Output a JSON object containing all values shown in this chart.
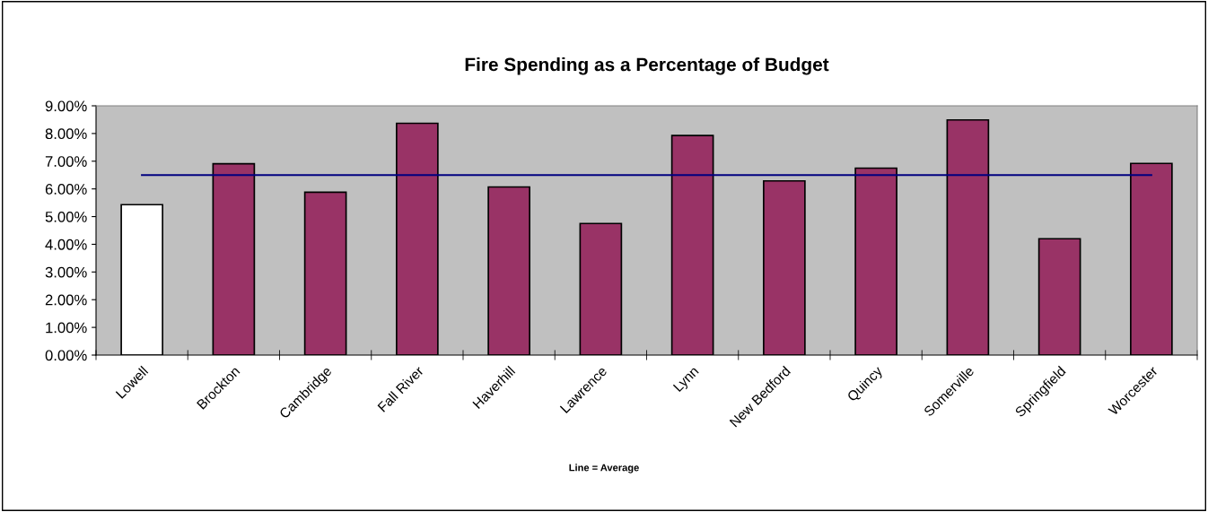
{
  "chart_data": {
    "type": "bar",
    "title": "Fire Spending as a Percentage of Budget",
    "annotations": [
      "Line = Average"
    ],
    "categories": [
      "Lowell",
      "Brockton",
      "Cambridge",
      "Fall River",
      "Haverhill",
      "Lawrence",
      "Lynn",
      "New Bedford",
      "Quincy",
      "Somerville",
      "Springfield",
      "Worcester"
    ],
    "series": [
      {
        "colors": [
          "#ffffff",
          "#993366",
          "#993366",
          "#993366",
          "#993366",
          "#993366",
          "#993366",
          "#993366",
          "#993366",
          "#993366",
          "#993366",
          "#993366"
        ],
        "values": [
          5.43,
          6.91,
          5.88,
          8.37,
          6.07,
          4.75,
          7.93,
          6.29,
          6.75,
          8.49,
          4.2,
          6.92
        ]
      },
      {
        "type": "line",
        "color": "#000080",
        "values": [
          6.5,
          6.5,
          6.5,
          6.5,
          6.5,
          6.5,
          6.5,
          6.5,
          6.5,
          6.5,
          6.5,
          6.5
        ]
      }
    ],
    "ylim": [
      0,
      9
    ],
    "yticks": [
      {
        "value": 0,
        "label": "0.00%"
      },
      {
        "value": 1,
        "label": "1.00%"
      },
      {
        "value": 2,
        "label": "2.00%"
      },
      {
        "value": 3,
        "label": "3.00%"
      },
      {
        "value": 4,
        "label": "4.00%"
      },
      {
        "value": 5,
        "label": "5.00%"
      },
      {
        "value": 6,
        "label": "6.00%"
      },
      {
        "value": 7,
        "label": "7.00%"
      },
      {
        "value": 8,
        "label": "8.00%"
      },
      {
        "value": 9,
        "label": "9.00%"
      }
    ],
    "grid": false,
    "legend": false,
    "marker": "none"
  }
}
